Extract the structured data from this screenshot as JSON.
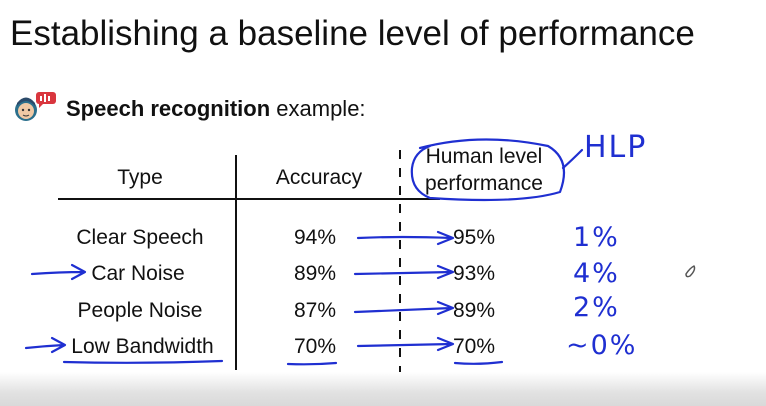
{
  "slide": {
    "title": "Establishing a baseline level of performance",
    "subtitle_bold": "Speech recognition",
    "subtitle_rest": " example:"
  },
  "table": {
    "headers": {
      "type": "Type",
      "accuracy": "Accuracy",
      "human_line1": "Human level",
      "human_line2": "performance"
    },
    "rows": [
      {
        "type": "Clear Speech",
        "accuracy": "94%",
        "human": "95%"
      },
      {
        "type": "Car Noise",
        "accuracy": "89%",
        "human": "93%"
      },
      {
        "type": "People Noise",
        "accuracy": "87%",
        "human": "89%"
      },
      {
        "type": "Low Bandwidth",
        "accuracy": "70%",
        "human": "70%"
      }
    ]
  },
  "annotations": {
    "hlp_label": "HLP",
    "gaps": [
      "1%",
      "4%",
      "2%",
      "~0%"
    ],
    "ink_color": "#1f2fd1"
  }
}
